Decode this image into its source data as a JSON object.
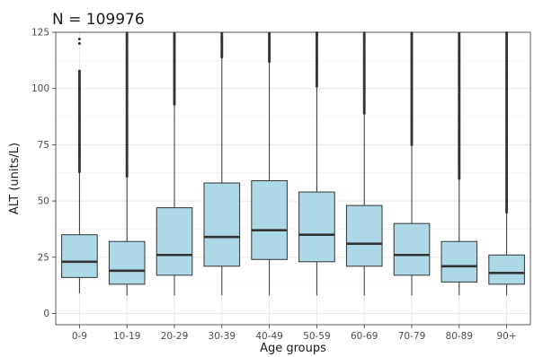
{
  "chart_data": {
    "type": "boxplot",
    "title": "N = 109976",
    "xlabel": "Age groups",
    "ylabel": "ALT (units/L)",
    "ylim": [
      -5,
      125
    ],
    "yticks": [
      0,
      25,
      50,
      75,
      100,
      125
    ],
    "grid": true,
    "box_color": "#add8e6",
    "categories": [
      "0-9",
      "10-19",
      "20-29",
      "30-39",
      "40-49",
      "50-59",
      "60-69",
      "70-79",
      "80-89",
      "90+"
    ],
    "boxes": [
      {
        "min": 9,
        "q1": 16,
        "median": 23,
        "q3": 35,
        "max": 63,
        "outliers_from": 63,
        "outliers_to": 108,
        "outliers_extra": [
          120,
          122
        ]
      },
      {
        "min": 8,
        "q1": 13,
        "median": 19,
        "q3": 32,
        "max": 61,
        "outliers_from": 61,
        "outliers_to": 125,
        "outliers_extra": []
      },
      {
        "min": 8,
        "q1": 17,
        "median": 26,
        "q3": 47,
        "max": 93,
        "outliers_from": 93,
        "outliers_to": 125,
        "outliers_extra": []
      },
      {
        "min": 8,
        "q1": 21,
        "median": 34,
        "q3": 58,
        "max": 114,
        "outliers_from": 114,
        "outliers_to": 125,
        "outliers_extra": []
      },
      {
        "min": 8,
        "q1": 24,
        "median": 37,
        "q3": 59,
        "max": 112,
        "outliers_from": 112,
        "outliers_to": 125,
        "outliers_extra": []
      },
      {
        "min": 8,
        "q1": 23,
        "median": 35,
        "q3": 54,
        "max": 101,
        "outliers_from": 101,
        "outliers_to": 125,
        "outliers_extra": []
      },
      {
        "min": 8,
        "q1": 21,
        "median": 31,
        "q3": 48,
        "max": 89,
        "outliers_from": 89,
        "outliers_to": 125,
        "outliers_extra": []
      },
      {
        "min": 8,
        "q1": 17,
        "median": 26,
        "q3": 40,
        "max": 75,
        "outliers_from": 75,
        "outliers_to": 125,
        "outliers_extra": []
      },
      {
        "min": 8,
        "q1": 14,
        "median": 21,
        "q3": 32,
        "max": 60,
        "outliers_from": 60,
        "outliers_to": 125,
        "outliers_extra": []
      },
      {
        "min": 8,
        "q1": 13,
        "median": 18,
        "q3": 26,
        "max": 45,
        "outliers_from": 45,
        "outliers_to": 125,
        "outliers_extra": []
      }
    ]
  }
}
